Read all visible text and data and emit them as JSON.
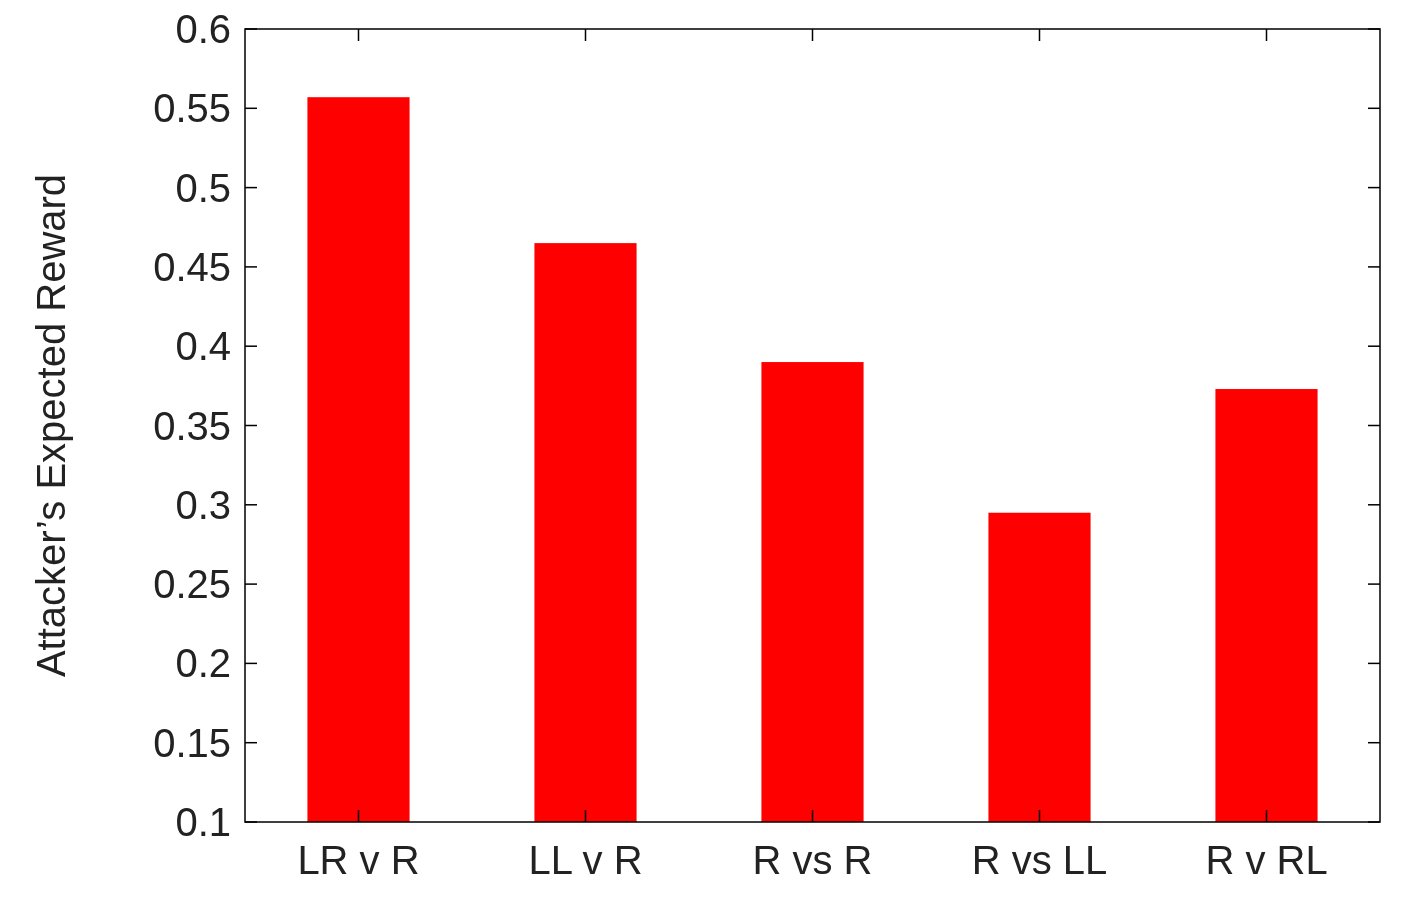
{
  "chart_data": {
    "type": "bar",
    "ylabel": "Attacker’s Expected Reward",
    "categories": [
      "LR v R",
      "LL v R",
      "R vs R",
      "R vs LL",
      "R v RL"
    ],
    "values": [
      0.557,
      0.465,
      0.39,
      0.295,
      0.373
    ],
    "color": "#ff0000",
    "ylim": [
      0.1,
      0.6
    ],
    "yticks": [
      0.1,
      0.15,
      0.2,
      0.25,
      0.3,
      0.35,
      0.4,
      0.45,
      0.5,
      0.55,
      0.6
    ],
    "grid": false
  }
}
